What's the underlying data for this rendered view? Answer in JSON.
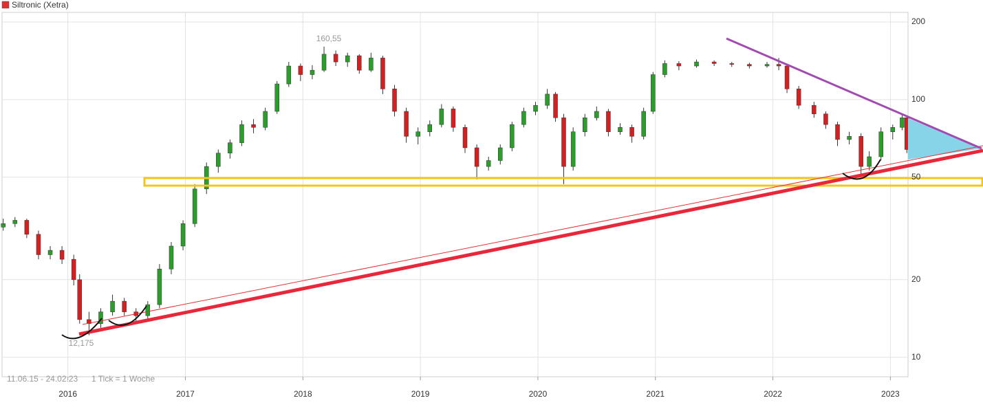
{
  "chart_data": {
    "type": "candlestick",
    "series_name": "Siltronic (Xetra)",
    "legend_color": "#e03030",
    "up_color": "#2a9d2a",
    "down_color": "#d42020",
    "log_scale": true,
    "grid": true,
    "period": "11.06.15 - 24.02.23",
    "tick_note": "1 Tick = 1 Woche",
    "annotations": [
      "160,55",
      "12,175"
    ],
    "xlim": [
      2015.44,
      2023.15
    ],
    "xticks": [
      2016,
      2017,
      2018,
      2019,
      2020,
      2021,
      2022,
      2023
    ],
    "ylim": [
      8.4,
      218
    ],
    "yticks": [
      10,
      20,
      50,
      100,
      200
    ],
    "x": [
      2015.45,
      2015.55,
      2015.65,
      2015.75,
      2015.85,
      2015.95,
      2016.05,
      2016.1,
      2016.18,
      2016.28,
      2016.38,
      2016.48,
      2016.58,
      2016.68,
      2016.78,
      2016.88,
      2016.98,
      2017.08,
      2017.18,
      2017.28,
      2017.38,
      2017.48,
      2017.58,
      2017.68,
      2017.78,
      2017.88,
      2017.98,
      2018.08,
      2018.18,
      2018.28,
      2018.38,
      2018.48,
      2018.58,
      2018.68,
      2018.78,
      2018.88,
      2018.98,
      2019.08,
      2019.18,
      2019.28,
      2019.38,
      2019.48,
      2019.58,
      2019.68,
      2019.78,
      2019.88,
      2019.98,
      2020.08,
      2020.15,
      2020.22,
      2020.3,
      2020.4,
      2020.5,
      2020.6,
      2020.7,
      2020.8,
      2020.9,
      2020.98,
      2021.08,
      2021.2,
      2021.35,
      2021.5,
      2021.65,
      2021.8,
      2021.95,
      2022.05,
      2022.12,
      2022.22,
      2022.35,
      2022.45,
      2022.55,
      2022.65,
      2022.75,
      2022.82,
      2022.92,
      2023.02,
      2023.1,
      2023.14
    ],
    "open": [
      32,
      33,
      34,
      30,
      25,
      26,
      24,
      20,
      14,
      13.5,
      15,
      16.5,
      15,
      14.5,
      16,
      22,
      27,
      33,
      45,
      55,
      62,
      68,
      80,
      78,
      90,
      115,
      135,
      125,
      130,
      150,
      140,
      148,
      130,
      145,
      110,
      90,
      72,
      75,
      80,
      92,
      78,
      65,
      55,
      58,
      65,
      80,
      90,
      95,
      105,
      85,
      55,
      75,
      85,
      90,
      75,
      78,
      72,
      90,
      125,
      138,
      135,
      140,
      138,
      137,
      135,
      137,
      135,
      110,
      95,
      88,
      80,
      70,
      72,
      55,
      60,
      75,
      78,
      85
    ],
    "high": [
      34.5,
      35,
      34.5,
      31,
      27,
      27,
      25,
      21,
      15,
      15.5,
      17.5,
      17,
      15.5,
      16.5,
      23,
      28,
      34,
      47,
      57,
      64,
      70,
      83,
      84,
      93,
      118,
      140,
      138,
      136,
      160.55,
      155,
      152,
      150,
      152,
      148,
      114,
      93,
      78,
      83,
      96,
      94,
      80,
      67,
      60,
      67,
      82,
      93,
      98,
      110,
      107,
      88,
      78,
      88,
      94,
      92,
      81,
      80,
      93,
      128,
      142,
      141,
      143,
      142,
      140,
      139,
      140,
      145,
      137,
      113,
      98,
      90,
      82,
      75,
      74,
      63,
      78,
      80,
      88,
      86
    ],
    "low": [
      31,
      32,
      29,
      24,
      24,
      23,
      19,
      13.5,
      12.175,
      13,
      14.5,
      14.5,
      13.8,
      14,
      15.5,
      21,
      26,
      32,
      43,
      52,
      59,
      66,
      74,
      76,
      88,
      112,
      118,
      120,
      128,
      135,
      134,
      126,
      128,
      105,
      86,
      68,
      67,
      72,
      78,
      75,
      62,
      49,
      53,
      56,
      63,
      78,
      87,
      92,
      82,
      47,
      53,
      72,
      83,
      72,
      73,
      68,
      70,
      88,
      122,
      130,
      133,
      135,
      134,
      132,
      133,
      130,
      106,
      92,
      85,
      77,
      66,
      67,
      50,
      53,
      58,
      70,
      76,
      62
    ],
    "close": [
      33,
      34,
      30,
      25,
      26,
      24,
      20,
      14,
      13.5,
      15,
      16.5,
      15,
      14.5,
      16,
      22,
      27,
      33,
      45,
      55,
      62,
      68,
      80,
      78,
      90,
      115,
      135,
      125,
      130,
      150,
      140,
      148,
      130,
      145,
      110,
      90,
      72,
      75,
      80,
      92,
      78,
      65,
      55,
      58,
      65,
      80,
      90,
      95,
      105,
      85,
      55,
      75,
      85,
      90,
      75,
      78,
      72,
      90,
      125,
      138,
      135,
      140,
      138,
      137,
      135,
      137,
      135,
      110,
      95,
      88,
      80,
      70,
      72,
      55,
      60,
      75,
      78,
      85,
      64
    ]
  }
}
